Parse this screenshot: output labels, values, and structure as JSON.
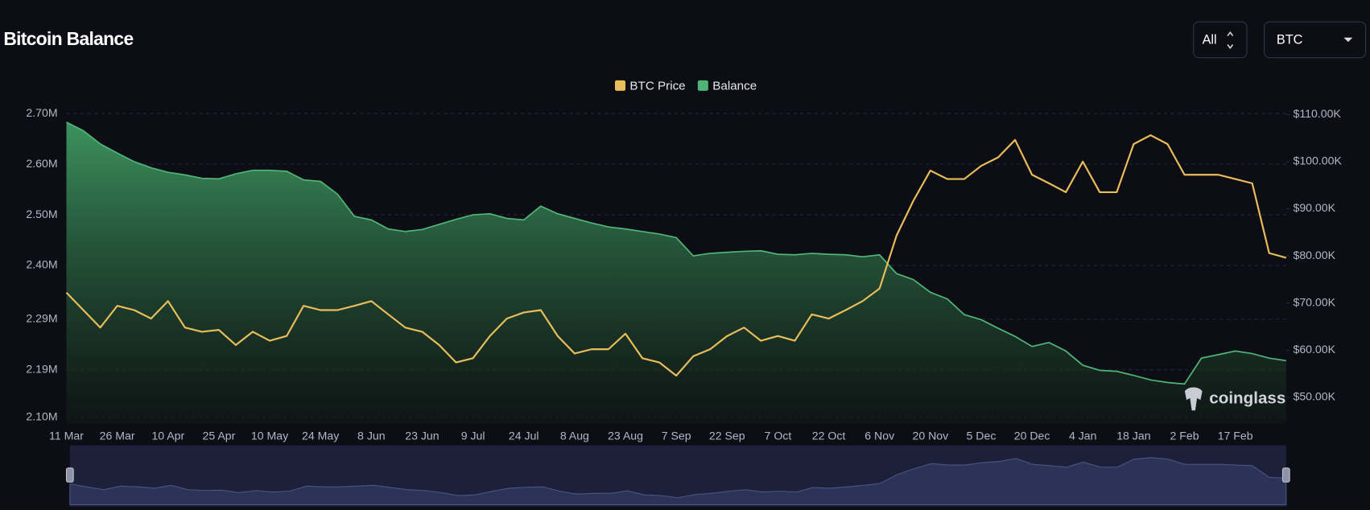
{
  "controls": [
    "All",
    "BTC"
  ],
  "chart_data": {
    "type": "line",
    "title": "Bitcoin Balance",
    "watermark": "coinglass",
    "grid": true,
    "categories": [
      "11 Mar",
      null,
      null,
      "26 Mar",
      null,
      null,
      "10 Apr",
      null,
      null,
      "25 Apr",
      null,
      null,
      "10 May",
      null,
      null,
      "24 May",
      null,
      null,
      "8 Jun",
      null,
      null,
      "23 Jun",
      null,
      null,
      "9 Jul",
      null,
      null,
      "24 Jul",
      null,
      null,
      "8 Aug",
      null,
      null,
      "23 Aug",
      null,
      null,
      "7 Sep",
      null,
      null,
      "22 Sep",
      null,
      null,
      "7 Oct",
      null,
      null,
      "22 Oct",
      null,
      null,
      "6 Nov",
      null,
      null,
      "20 Nov",
      null,
      null,
      "5 Dec",
      null,
      null,
      "20 Dec",
      null,
      null,
      "4 Jan",
      null,
      null,
      "18 Jan",
      null,
      null,
      "2 Feb",
      null,
      null,
      "17 Feb",
      null,
      null,
      null
    ],
    "series": [
      {
        "name": "BTC Price",
        "color": "#e9bd5a",
        "axis": "y2",
        "type": "line",
        "values": [
          72200,
          68500,
          64800,
          69400,
          68500,
          66700,
          70400,
          64800,
          63900,
          64300,
          61100,
          63900,
          62000,
          63000,
          69400,
          68500,
          68500,
          69400,
          70400,
          67600,
          64800,
          63900,
          61100,
          57400,
          58300,
          63000,
          66700,
          68000,
          68500,
          63000,
          59300,
          60200,
          60200,
          63500,
          58300,
          57400,
          54600,
          58700,
          60200,
          63000,
          64800,
          62000,
          63000,
          62000,
          67600,
          66700,
          68500,
          70400,
          73100,
          84300,
          91700,
          98100,
          96300,
          96300,
          99100,
          100900,
          104600,
          97200,
          95400,
          93500,
          100000,
          93500,
          93500,
          103700,
          105600,
          103700,
          97200,
          97200,
          97200,
          96300,
          95400,
          80600,
          79600
        ]
      },
      {
        "name": "Balance",
        "color": "#4fb477",
        "type": "area",
        "values": [
          2683000,
          2666000,
          2640000,
          2622000,
          2605000,
          2593000,
          2584000,
          2579000,
          2572000,
          2571000,
          2581000,
          2588000,
          2588000,
          2586000,
          2569000,
          2566000,
          2541000,
          2497000,
          2490000,
          2472000,
          2467000,
          2471000,
          2481000,
          2491000,
          2500000,
          2502000,
          2493000,
          2490000,
          2517000,
          2502000,
          2493000,
          2484000,
          2476000,
          2472000,
          2467000,
          2462000,
          2455000,
          2419000,
          2424000,
          2426000,
          2428000,
          2429000,
          2422000,
          2421000,
          2424000,
          2422000,
          2421000,
          2417000,
          2421000,
          2384000,
          2372000,
          2347000,
          2334000,
          2303000,
          2293000,
          2276000,
          2260000,
          2240000,
          2248000,
          2231000,
          2203000,
          2193000,
          2191000,
          2183000,
          2174000,
          2169000,
          2166000,
          2217000,
          2224000,
          2231000,
          2226000,
          2217000,
          2212000
        ]
      }
    ],
    "ylim": [
      2100000,
      2700000
    ],
    "yticks": [
      {
        "value": 2100000,
        "label": "2.10M"
      },
      {
        "value": 2194000,
        "label": "2.19M"
      },
      {
        "value": 2294000,
        "label": "2.29M"
      },
      {
        "value": 2400000,
        "label": "2.40M"
      },
      {
        "value": 2500000,
        "label": "2.50M"
      },
      {
        "value": 2600000,
        "label": "2.60M"
      },
      {
        "value": 2700000,
        "label": "2.70M"
      }
    ],
    "y2lim": [
      45740,
      110190
    ],
    "y2ticks": [
      {
        "value": 50000,
        "label": "$50.00K"
      },
      {
        "value": 60000,
        "label": "$60.00K"
      },
      {
        "value": 70000,
        "label": "$70.00K"
      },
      {
        "value": 80000,
        "label": "$80.00K"
      },
      {
        "value": 90000,
        "label": "$90.00K"
      },
      {
        "value": 100000,
        "label": "$100.00K"
      },
      {
        "value": 110000,
        "label": "$110.00K"
      }
    ]
  }
}
